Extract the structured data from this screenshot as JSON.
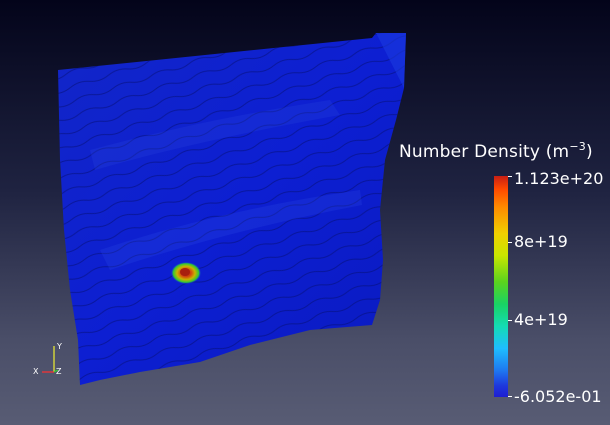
{
  "colorbar": {
    "title": "Number Density (m",
    "title_exponent": "−3",
    "title_close": ")",
    "max_label": "1.123e+20",
    "tick1_label": "8e+19",
    "tick2_label": "4e+19",
    "min_label": "-6.052e-01",
    "gradient_colors": [
      "#c81e14",
      "#ff8a00",
      "#f0d000",
      "#5ad21e",
      "#14dcb4",
      "#1ebeff",
      "#1e37dc",
      "#1e1ed2"
    ]
  },
  "axes": {
    "x_label": "X",
    "y_label": "Y",
    "z_label": "Z",
    "x_color": "#ff3030",
    "y_color": "#f0f030",
    "z_color": "#30d030"
  },
  "surface": {
    "base_color": "#0d1ed0",
    "hotspot_colors": [
      "#c82814",
      "#e6a000",
      "#28c828"
    ]
  }
}
